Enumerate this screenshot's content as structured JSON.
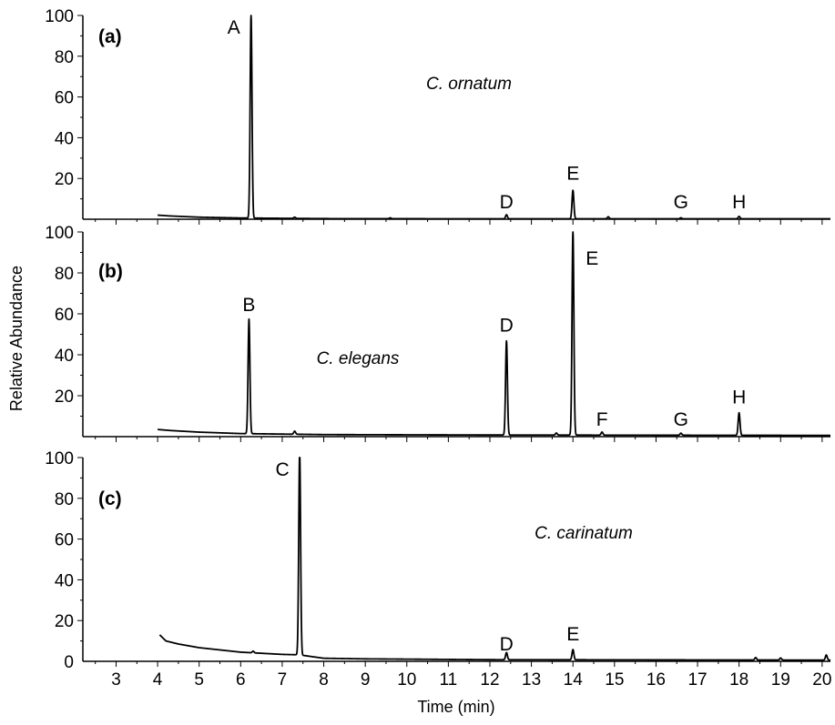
{
  "chart_data": {
    "type": "line",
    "xlabel": "Time (min)",
    "ylabel": "Relative Abundance",
    "xlim": [
      2.2,
      20.2
    ],
    "ylim": [
      0,
      100
    ],
    "x_ticks": [
      3,
      4,
      5,
      6,
      7,
      8,
      9,
      10,
      11,
      12,
      13,
      14,
      15,
      16,
      17,
      18,
      19,
      20
    ],
    "y_ticks": [
      20,
      40,
      60,
      80,
      100
    ],
    "y_ticks_bottom": [
      0,
      20,
      40,
      60,
      80,
      100
    ],
    "panels": [
      {
        "label": "(a)",
        "species": "C. ornatum",
        "trace": {
          "start": 4.0,
          "end": 20.2,
          "baseline": [
            [
              4.0,
              2.0
            ],
            [
              4.3,
              1.6
            ],
            [
              5.0,
              1.0
            ],
            [
              6.0,
              0.6
            ],
            [
              8.0,
              0.3
            ],
            [
              12.0,
              0.2
            ],
            [
              20.2,
              0.2
            ]
          ],
          "peaks": [
            [
              6.25,
              100
            ],
            [
              12.4,
              2
            ],
            [
              14.0,
              14
            ],
            [
              14.85,
              1
            ],
            [
              16.6,
              0.5
            ],
            [
              18.0,
              1.2
            ],
            [
              7.3,
              0.6
            ],
            [
              9.6,
              0.4
            ]
          ]
        },
        "peak_labels": [
          {
            "text": "A",
            "x": 6.25,
            "y": 100
          },
          {
            "text": "D",
            "x": 12.4,
            "y": 2
          },
          {
            "text": "E",
            "x": 14.0,
            "y": 14
          },
          {
            "text": "G",
            "x": 16.6,
            "y": 0.5
          },
          {
            "text": "H",
            "x": 18.0,
            "y": 1.2
          }
        ]
      },
      {
        "label": "(b)",
        "species": "C. elegans",
        "trace": {
          "start": 4.0,
          "end": 20.2,
          "baseline": [
            [
              4.0,
              3.5
            ],
            [
              4.3,
              3.0
            ],
            [
              5.0,
              2.2
            ],
            [
              6.0,
              1.5
            ],
            [
              8.0,
              1.0
            ],
            [
              12.0,
              0.8
            ],
            [
              20.2,
              0.6
            ]
          ],
          "peaks": [
            [
              6.2,
              56
            ],
            [
              12.4,
              46
            ],
            [
              14.0,
              100
            ],
            [
              14.7,
              1.5
            ],
            [
              16.6,
              1
            ],
            [
              18.0,
              11
            ],
            [
              7.3,
              1.5
            ],
            [
              13.6,
              1
            ]
          ]
        },
        "peak_labels": [
          {
            "text": "B",
            "x": 6.2,
            "y": 56
          },
          {
            "text": "D",
            "x": 12.4,
            "y": 46
          },
          {
            "text": "E",
            "x": 14.0,
            "y": 100
          },
          {
            "text": "F",
            "x": 14.7,
            "y": 1.5
          },
          {
            "text": "G",
            "x": 16.6,
            "y": 1
          },
          {
            "text": "H",
            "x": 18.0,
            "y": 11
          }
        ]
      },
      {
        "label": "(c)",
        "species": "C. carinatum",
        "trace": {
          "start": 4.05,
          "end": 20.2,
          "baseline": [
            [
              4.05,
              13
            ],
            [
              4.2,
              10
            ],
            [
              4.5,
              8.5
            ],
            [
              5.0,
              6.7
            ],
            [
              6.0,
              4.5
            ],
            [
              7.0,
              3.4
            ],
            [
              7.4,
              3.2
            ],
            [
              8.0,
              1.5
            ],
            [
              9.0,
              1.2
            ],
            [
              12.0,
              0.8
            ],
            [
              20.2,
              0.6
            ]
          ],
          "peaks": [
            [
              7.42,
              100
            ],
            [
              12.4,
              3.5
            ],
            [
              14.0,
              5
            ],
            [
              18.4,
              1.2
            ],
            [
              19.0,
              1
            ],
            [
              20.1,
              2.5
            ],
            [
              6.3,
              0.8
            ]
          ]
        },
        "peak_labels": [
          {
            "text": "C",
            "x": 7.42,
            "y": 100
          },
          {
            "text": "D",
            "x": 12.4,
            "y": 3.5
          },
          {
            "text": "E",
            "x": 14.0,
            "y": 5
          }
        ]
      }
    ]
  }
}
